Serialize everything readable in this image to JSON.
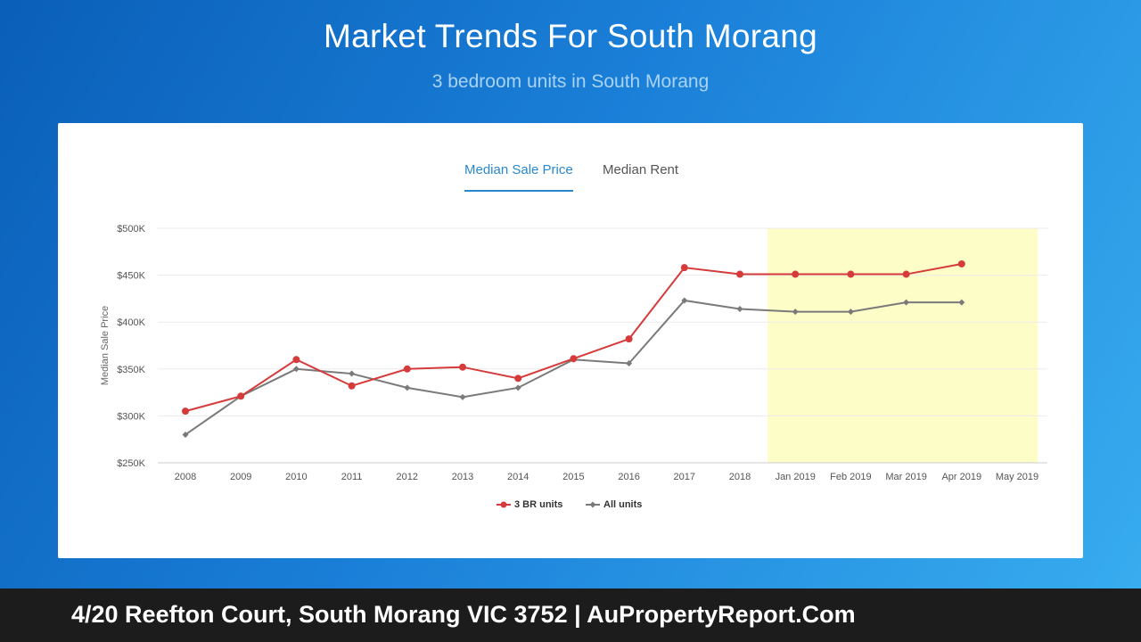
{
  "header": {
    "title": "Market Trends For South Morang",
    "subtitle": "3 bedroom units in South Morang"
  },
  "tabs": [
    {
      "label": "Median Sale Price",
      "active": true
    },
    {
      "label": "Median Rent",
      "active": false
    }
  ],
  "footer": {
    "text": "4/20 Reefton Court, South Morang VIC 3752 | AuPropertyReport.Com"
  },
  "colors": {
    "series_3br": "#d63b3b",
    "series_all": "#7a7a7a",
    "forecast_band": "#fdfdc8",
    "tab_active": "#2a88cc"
  },
  "chart_data": {
    "type": "line",
    "title": "",
    "xlabel": "",
    "ylabel": "Median Sale Price",
    "categories": [
      "2008",
      "2009",
      "2010",
      "2011",
      "2012",
      "2013",
      "2014",
      "2015",
      "2016",
      "2017",
      "2018",
      "Jan 2019",
      "Feb 2019",
      "Mar 2019",
      "Apr 2019",
      "May 2019"
    ],
    "ylim": [
      250000,
      500000
    ],
    "yticks": [
      {
        "value": 250000,
        "label": "$250K"
      },
      {
        "value": 300000,
        "label": "$300K"
      },
      {
        "value": 350000,
        "label": "$350K"
      },
      {
        "value": 400000,
        "label": "$400K"
      },
      {
        "value": 450000,
        "label": "$450K"
      },
      {
        "value": 500000,
        "label": "$500K"
      }
    ],
    "highlight_range": [
      "Jan 2019",
      "May 2019"
    ],
    "grid": true,
    "legend_position": "bottom-center",
    "series": [
      {
        "name": "3 BR units",
        "marker": "circle",
        "values": [
          305000,
          321000,
          360000,
          332000,
          350000,
          352000,
          340000,
          361000,
          382000,
          458000,
          451000,
          451000,
          451000,
          451000,
          462000,
          null
        ]
      },
      {
        "name": "All units",
        "marker": "diamond",
        "values": [
          280000,
          321000,
          350000,
          345000,
          330000,
          320000,
          330000,
          360000,
          356000,
          423000,
          414000,
          411000,
          411000,
          421000,
          421000,
          null
        ]
      }
    ]
  }
}
